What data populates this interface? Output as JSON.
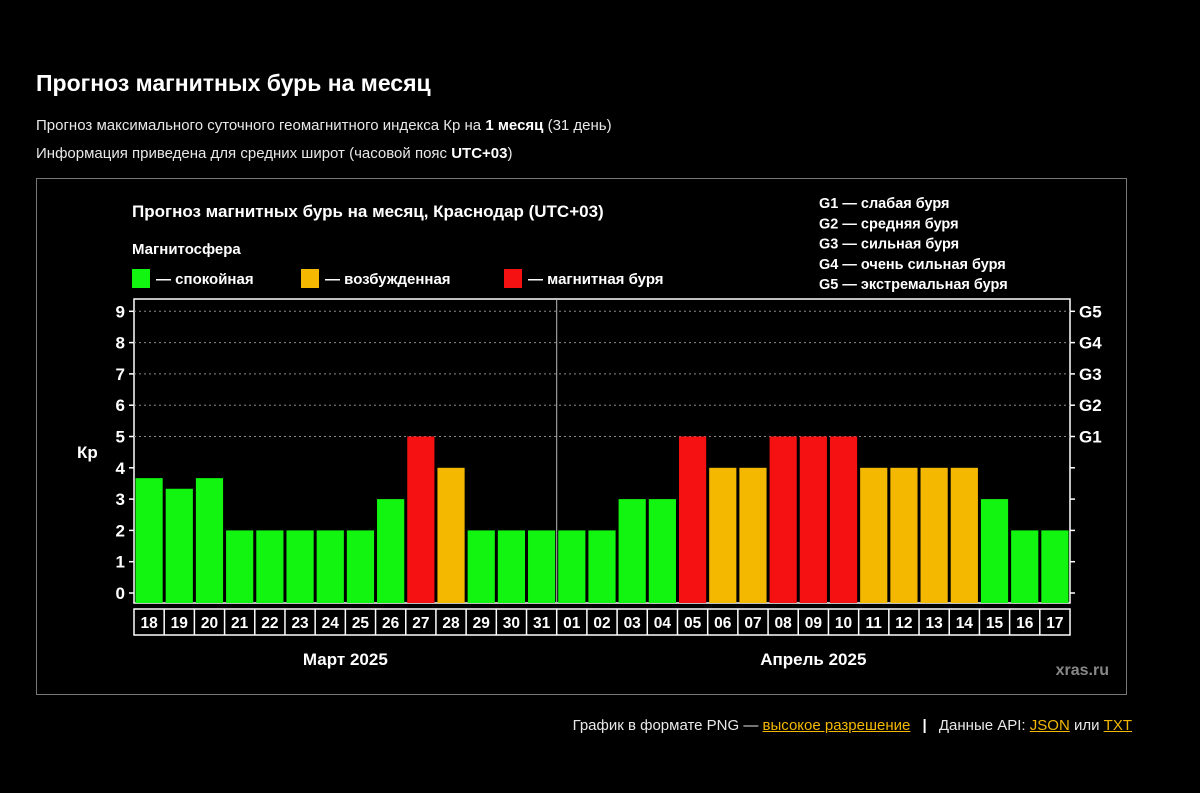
{
  "page": {
    "title": "Прогноз магнитных бурь на месяц",
    "info1": {
      "prefix": "Прогноз максимального суточного геомагнитного индекса Кр на",
      "bold": "1 месяц",
      "suffix": "(31 день)"
    },
    "info2": {
      "prefix": "Информация приведена для средних широт (часовой пояс",
      "bold": "UTC+03",
      "suffix": ")"
    }
  },
  "footer": {
    "png_prefix": "График в формате PNG —",
    "png_link": "высокое разрешение",
    "separator": "|",
    "api_prefix": "Данные API:",
    "json_link": "JSON",
    "or": "или",
    "txt_link": "TXT"
  },
  "colors": {
    "calm": "#11f511",
    "excited": "#f5b800",
    "storm": "#f51111"
  },
  "chart_data": {
    "type": "bar",
    "title": "Прогноз магнитных бурь на месяц, Краснодар (UTC+03)",
    "ylabel": "Кр",
    "ylim": [
      0,
      9
    ],
    "yticks": [
      "0",
      "1",
      "2",
      "3",
      "4",
      "5",
      "6",
      "7",
      "8",
      "9"
    ],
    "right_ticks": [
      {
        "value": 5,
        "label": "G1"
      },
      {
        "value": 6,
        "label": "G2"
      },
      {
        "value": 7,
        "label": "G3"
      },
      {
        "value": 8,
        "label": "G4"
      },
      {
        "value": 9,
        "label": "G5"
      }
    ],
    "legend_title": "Магнитосфера",
    "legend": [
      {
        "label": "— спокойная",
        "color": "#11f511"
      },
      {
        "label": "— возбужденная",
        "color": "#f5b800"
      },
      {
        "label": "— магнитная буря",
        "color": "#f51111"
      }
    ],
    "g_legend": [
      "G1 — слабая буря",
      "G2 — средняя буря",
      "G3 — сильная буря",
      "G4 — очень сильная буря",
      "G5 — экстремальная буря"
    ],
    "categories": [
      "18",
      "19",
      "20",
      "21",
      "22",
      "23",
      "24",
      "25",
      "26",
      "27",
      "28",
      "29",
      "30",
      "31",
      "01",
      "02",
      "03",
      "04",
      "05",
      "06",
      "07",
      "08",
      "09",
      "10",
      "11",
      "12",
      "13",
      "14",
      "15",
      "16",
      "17"
    ],
    "values": [
      3.67,
      3.33,
      3.67,
      2,
      2,
      2,
      2,
      2,
      3,
      5,
      4,
      2,
      2,
      2,
      2,
      2,
      3,
      3,
      5,
      4,
      4,
      5,
      5,
      5,
      4,
      4,
      4,
      4,
      3,
      2,
      2
    ],
    "months": [
      {
        "label": "Март 2025",
        "from": 0,
        "to": 13
      },
      {
        "label": "Апрель 2025",
        "from": 14,
        "to": 30
      }
    ],
    "watermark": "xras.ru",
    "grid": "dotted at 5–9"
  }
}
